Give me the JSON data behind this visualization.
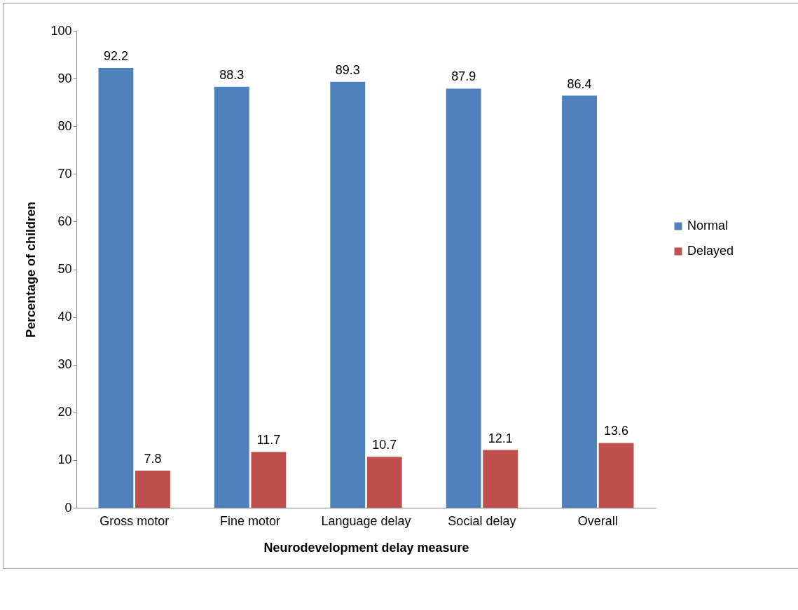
{
  "chart_data": {
    "type": "bar",
    "xlabel": "Neurodevelopment delay measure",
    "ylabel": "Percentage of children",
    "categories": [
      "Gross motor",
      "Fine motor",
      "Language delay",
      "Social delay",
      "Overall"
    ],
    "series": [
      {
        "name": "Normal",
        "color": "#4f81bd",
        "values": [
          92.2,
          88.3,
          89.3,
          87.9,
          86.4
        ]
      },
      {
        "name": "Delayed",
        "color": "#c0504d",
        "values": [
          7.8,
          11.7,
          10.7,
          12.1,
          13.6
        ]
      }
    ],
    "ylim": [
      0,
      100
    ],
    "yticks": [
      0,
      10,
      20,
      30,
      40,
      50,
      60,
      70,
      80,
      90,
      100
    ],
    "grid": false,
    "legend": "right",
    "data_labels": true
  }
}
